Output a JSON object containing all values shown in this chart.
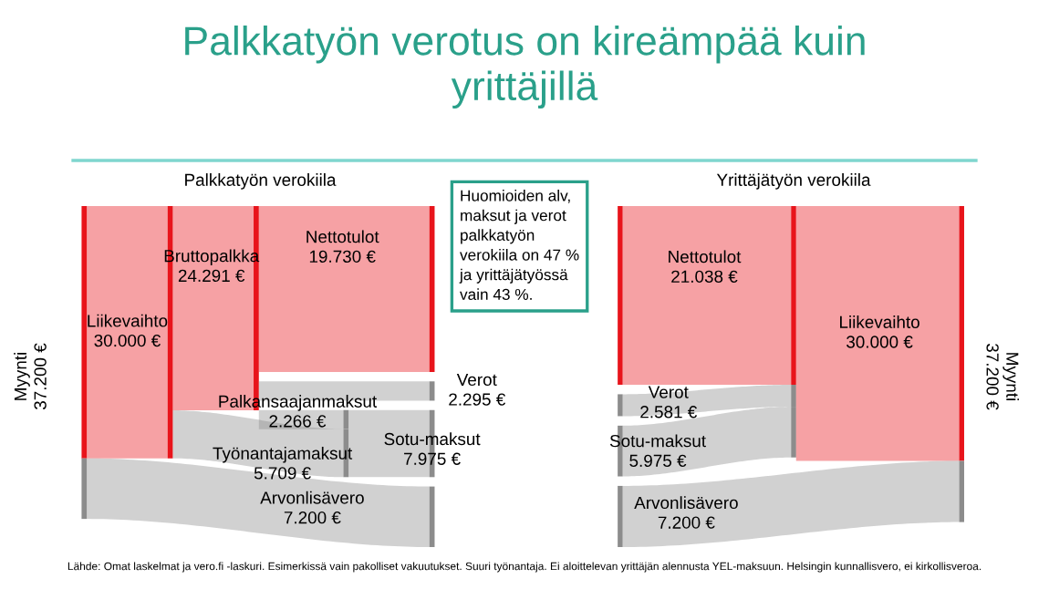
{
  "chart_data": [
    {
      "type": "other",
      "title": "Palkkatyön verotus on kireämpää kuin\nyrittäjillä",
      "annotations": [
        "Huomioiden alv,\nmaksut ja verot\npalkkatyön\nverokiila on 47 %\nja yrittäjätyössä\nvain 43 %.",
        "Lähde: Omat laskelmat ja vero.fi -laskuri. Esimerkissä vain pakolliset vakuutukset. Suuri työnantaja. Ei aloittelevan yrittäjän alennusta YEL-maksuun. Helsingin kunnallisvero, ei kirkollisveroa."
      ]
    },
    {
      "type": "other",
      "title": "Palkkatyön verokiila",
      "categories": [
        "Myynti",
        "Liikevaihto",
        "Arvonlisävero",
        "Bruttopalkka",
        "Työnantajamaksut",
        "Nettotulot",
        "Verot",
        "Palkansaajanmaksut",
        "Sotu-maksut"
      ],
      "values": [
        37200,
        30000,
        7200,
        24291,
        5709,
        19730,
        2295,
        2266,
        7975
      ],
      "value_labels": [
        "37.200 €",
        "30.000 €",
        "7.200 €",
        "24.291 €",
        "5.709 €",
        "19.730 €",
        "2.295 €",
        "2.266 €",
        "7.975 €"
      ],
      "colors": [
        "#e8141b",
        "#e8141b",
        "#8c8c8c",
        "#e8141b",
        "#8c8c8c",
        "#e8141b",
        "#8c8c8c",
        "#8c8c8c",
        "#8c8c8c"
      ]
    },
    {
      "type": "other",
      "title": "Yrittäjätyön verokiila",
      "categories": [
        "Nettotulot",
        "Verot",
        "Sotu-maksut",
        "Liikevaihto",
        "Arvonlisävero",
        "Myynti"
      ],
      "values": [
        21038,
        2581,
        5975,
        30000,
        7200,
        37200
      ],
      "value_labels": [
        "21.038 €",
        "2.581 €",
        "5.975 €",
        "30.000 €",
        "7.200 €",
        "37.200 €"
      ],
      "colors": [
        "#e8141b",
        "#8c8c8c",
        "#8c8c8c",
        "#e8141b",
        "#8c8c8c",
        "#e8141b"
      ]
    }
  ]
}
